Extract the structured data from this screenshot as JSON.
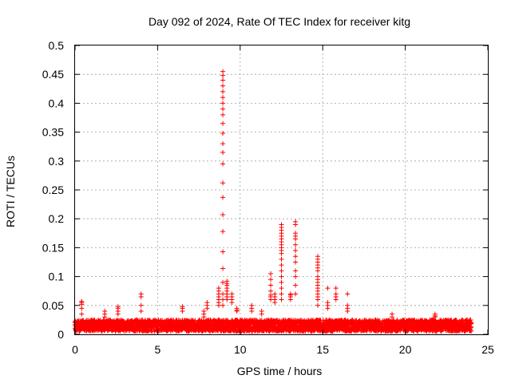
{
  "colors": {
    "background": "#ffffff",
    "axis": "#000000",
    "grid": "#a0a0a0",
    "series": "#ff0000"
  },
  "chart_data": {
    "type": "scatter",
    "title": "Day 092 of 2024, Rate Of TEC Index for receiver kitg",
    "xlabel": "GPS time / hours",
    "ylabel": "ROTI / TECUs",
    "xlim": [
      0,
      25
    ],
    "ylim": [
      0,
      0.5
    ],
    "grid": true,
    "marker": "plus",
    "x_ticks": [
      0,
      5,
      10,
      15,
      20,
      25
    ],
    "y_ticks": [
      0,
      0.05,
      0.1,
      0.15,
      0.2,
      0.25,
      0.3,
      0.35,
      0.4,
      0.45,
      0.5
    ],
    "x_tick_labels": [
      "0",
      "5",
      "10",
      "15",
      "20",
      "25"
    ],
    "y_tick_labels": [
      "0",
      "0.05",
      "0.1",
      "0.15",
      "0.2",
      "0.25",
      "0.3",
      "0.35",
      "0.4",
      "0.45",
      "0.5"
    ],
    "series": [
      {
        "name": "ROTI",
        "baseline": {
          "x_range": [
            0,
            24
          ],
          "y_range": [
            0.005,
            0.025
          ]
        },
        "spikes": [
          {
            "x": 0.4,
            "y": [
              0.055,
              0.057,
              0.052,
              0.045,
              0.035
            ]
          },
          {
            "x": 1.8,
            "y": [
              0.04,
              0.035,
              0.03
            ]
          },
          {
            "x": 2.6,
            "y": [
              0.048,
              0.045,
              0.04,
              0.035
            ]
          },
          {
            "x": 4.0,
            "y": [
              0.07,
              0.065,
              0.05,
              0.04
            ]
          },
          {
            "x": 6.5,
            "y": [
              0.048,
              0.045,
              0.04
            ]
          },
          {
            "x": 7.8,
            "y": [
              0.04,
              0.035,
              0.03
            ]
          },
          {
            "x": 8.0,
            "y": [
              0.055,
              0.05,
              0.045
            ]
          },
          {
            "x": 8.7,
            "y": [
              0.08,
              0.075,
              0.07,
              0.065,
              0.06,
              0.055,
              0.05
            ]
          },
          {
            "x": 8.95,
            "y": [
              0.455,
              0.448,
              0.44,
              0.43,
              0.42,
              0.41,
              0.4,
              0.39,
              0.38,
              0.365,
              0.348,
              0.33,
              0.315,
              0.295,
              0.262,
              0.237,
              0.207,
              0.178,
              0.143,
              0.114,
              0.09,
              0.07,
              0.06,
              0.05
            ]
          },
          {
            "x": 9.2,
            "y": [
              0.092,
              0.088,
              0.085,
              0.08,
              0.075,
              0.07,
              0.065,
              0.06
            ]
          },
          {
            "x": 9.5,
            "y": [
              0.07,
              0.065,
              0.06,
              0.055
            ]
          },
          {
            "x": 9.8,
            "y": [
              0.045,
              0.042,
              0.04
            ]
          },
          {
            "x": 10.7,
            "y": [
              0.05,
              0.045,
              0.04
            ]
          },
          {
            "x": 11.3,
            "y": [
              0.04,
              0.035
            ]
          },
          {
            "x": 11.85,
            "y": [
              0.105,
              0.095,
              0.085,
              0.075,
              0.068,
              0.065,
              0.06
            ]
          },
          {
            "x": 12.1,
            "y": [
              0.07,
              0.065,
              0.06,
              0.055
            ]
          },
          {
            "x": 12.5,
            "y": [
              0.19,
              0.185,
              0.18,
              0.175,
              0.17,
              0.165,
              0.16,
              0.155,
              0.15,
              0.145,
              0.14,
              0.13,
              0.12,
              0.11,
              0.1,
              0.09,
              0.08,
              0.07,
              0.06
            ]
          },
          {
            "x": 13.05,
            "y": [
              0.07,
              0.068,
              0.065,
              0.06
            ]
          },
          {
            "x": 13.35,
            "y": [
              0.195,
              0.19,
              0.175,
              0.17,
              0.165,
              0.155,
              0.145,
              0.135,
              0.125,
              0.11,
              0.1,
              0.085,
              0.07
            ]
          },
          {
            "x": 14.7,
            "y": [
              0.135,
              0.13,
              0.125,
              0.12,
              0.115,
              0.11,
              0.1,
              0.095,
              0.09,
              0.085,
              0.08,
              0.075,
              0.07,
              0.065,
              0.06,
              0.05
            ]
          },
          {
            "x": 15.3,
            "y": [
              0.08,
              0.055,
              0.05,
              0.045
            ]
          },
          {
            "x": 15.8,
            "y": [
              0.08,
              0.07,
              0.065,
              0.06
            ]
          },
          {
            "x": 16.5,
            "y": [
              0.07,
              0.05,
              0.045,
              0.04
            ]
          },
          {
            "x": 19.2,
            "y": [
              0.035,
              0.03
            ]
          },
          {
            "x": 21.8,
            "y": [
              0.035,
              0.032,
              0.03
            ]
          },
          {
            "x": 23.7,
            "y": [
              0.025,
              0.02
            ]
          }
        ]
      }
    ]
  }
}
